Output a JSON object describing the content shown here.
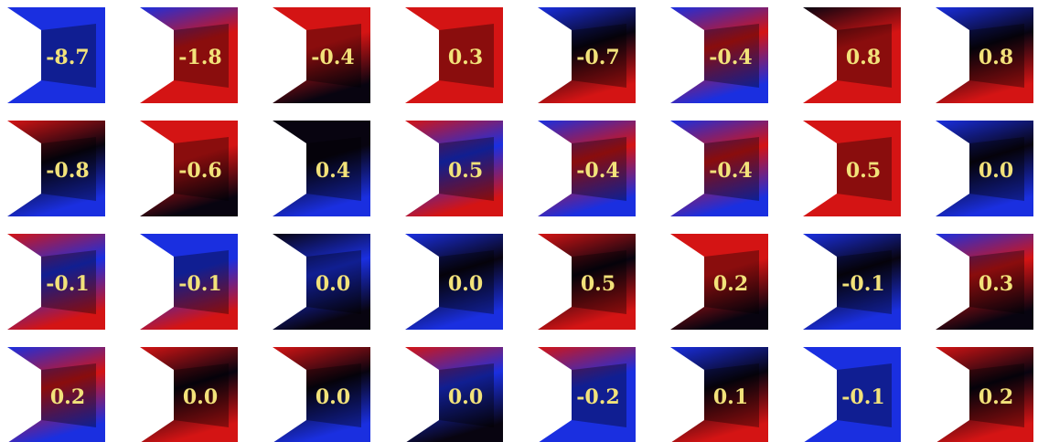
{
  "grid": {
    "rows": [
      [
        "-8.7",
        "-1.8",
        "-0.4",
        "0.3",
        "-0.7",
        "-0.4",
        "0.8",
        "0.8"
      ],
      [
        "-0.8",
        "-0.6",
        "0.4",
        "0.5",
        "-0.4",
        "-0.4",
        "0.5",
        "0.0"
      ],
      [
        "-0.1",
        "-0.1",
        "0.0",
        "0.0",
        "0.5",
        "0.2",
        "-0.1",
        "0.3"
      ],
      [
        "0.2",
        "0.0",
        "0.0",
        "0.0",
        "-0.2",
        "0.1",
        "-0.1",
        "0.2"
      ]
    ]
  }
}
